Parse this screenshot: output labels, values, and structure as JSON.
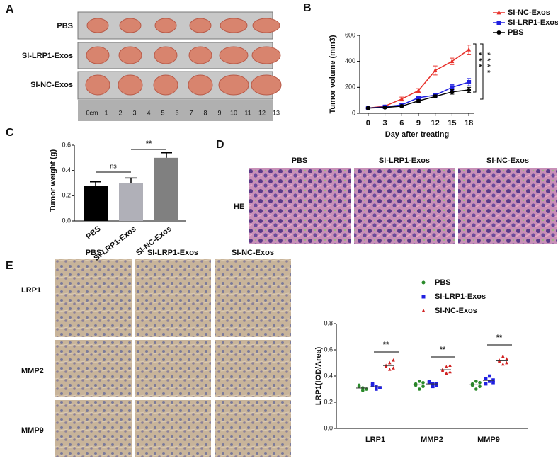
{
  "panel_labels": [
    "A",
    "B",
    "C",
    "D",
    "E"
  ],
  "panel_a": {
    "rows": [
      "PBS",
      "SI-LRP1-Exos",
      "SI-NC-Exos"
    ],
    "ruler": [
      "0cm",
      "1",
      "2",
      "3",
      "4",
      "5",
      "6",
      "7",
      "8",
      "9",
      "10",
      "11",
      "12",
      "13"
    ]
  },
  "panel_d": {
    "columns": [
      "PBS",
      "SI-LRP1-Exos",
      "SI-NC-Exos"
    ],
    "rows": [
      "HE"
    ]
  },
  "panel_e": {
    "columns": [
      "PBS",
      "SI-LRP1-Exos",
      "SI-NC-Exos"
    ],
    "rows": [
      "LRP1",
      "MMP2",
      "MMP9"
    ]
  },
  "chart_data": [
    {
      "type": "line",
      "ylabel": "Tumor volume (mm3)",
      "xlabel": "Day after treating",
      "x": [
        0,
        3,
        6,
        9,
        12,
        15,
        18
      ],
      "xlim": [
        -1.5,
        19
      ],
      "xticks": [
        0,
        3,
        6,
        9,
        12,
        15,
        18
      ],
      "ylim": [
        0,
        600
      ],
      "yticks": [
        0,
        200,
        400,
        600
      ],
      "series": [
        {
          "name": "SI-NC-Exos",
          "color": "#e8302a",
          "marker": "triangle",
          "values": [
            40,
            55,
            110,
            175,
            330,
            400,
            490
          ],
          "errors": [
            5,
            8,
            15,
            15,
            35,
            25,
            35
          ]
        },
        {
          "name": "SI-LRP1-Exos",
          "color": "#2020e0",
          "marker": "square",
          "values": [
            40,
            50,
            65,
            120,
            140,
            200,
            240
          ],
          "errors": [
            4,
            5,
            8,
            12,
            15,
            20,
            28
          ]
        },
        {
          "name": "PBS",
          "color": "#000000",
          "marker": "circle",
          "values": [
            40,
            45,
            55,
            95,
            130,
            165,
            180
          ],
          "errors": [
            4,
            5,
            6,
            10,
            12,
            18,
            20
          ]
        }
      ],
      "annotations": [
        "***",
        "****"
      ]
    },
    {
      "type": "bar",
      "ylabel": "Tumor weight (g)",
      "categories": [
        "PBS",
        "SI-LRP1-Exos",
        "SI-NC-Exos"
      ],
      "values": [
        0.28,
        0.3,
        0.5
      ],
      "errors": [
        0.03,
        0.04,
        0.04
      ],
      "colors": [
        "#000000",
        "#b0b0b8",
        "#808080"
      ],
      "ylim": [
        0,
        0.6
      ],
      "yticks": [
        {
          "value": 0,
          "label": "0.0"
        },
        0.2,
        0.4,
        0.6
      ],
      "annotations": [
        "ns",
        "**"
      ]
    },
    {
      "type": "dot",
      "ylabel": "LRP1(IOD/Area)",
      "categories": [
        "LRP1",
        "MMP2",
        "MMP9"
      ],
      "ylim": [
        0,
        0.8
      ],
      "yticks": [
        {
          "value": 0,
          "label": "0.0"
        },
        0.2,
        0.4,
        0.6,
        0.8
      ],
      "series": [
        {
          "name": "PBS",
          "color": "#2a8a2a",
          "marker": "circle",
          "values": [
            [
              0.3,
              0.32,
              0.29,
              0.31,
              0.33,
              0.3
            ],
            [
              0.32,
              0.34,
              0.3,
              0.36,
              0.33,
              0.35
            ],
            [
              0.32,
              0.34,
              0.3,
              0.36,
              0.33,
              0.35
            ]
          ]
        },
        {
          "name": "SI-LRP1-Exos",
          "color": "#2020e0",
          "marker": "square",
          "values": [
            [
              0.31,
              0.33,
              0.3,
              0.32,
              0.34,
              0.31
            ],
            [
              0.33,
              0.35,
              0.34,
              0.32,
              0.36,
              0.34
            ],
            [
              0.35,
              0.38,
              0.36,
              0.4,
              0.34,
              0.37
            ]
          ]
        },
        {
          "name": "SI-NC-Exos",
          "color": "#d02020",
          "marker": "triangle",
          "values": [
            [
              0.46,
              0.48,
              0.5,
              0.45,
              0.47,
              0.52
            ],
            [
              0.43,
              0.45,
              0.47,
              0.42,
              0.44,
              0.48
            ],
            [
              0.5,
              0.52,
              0.55,
              0.49,
              0.51,
              0.53
            ]
          ]
        }
      ],
      "annotations": [
        "**",
        "**",
        "**"
      ]
    }
  ]
}
